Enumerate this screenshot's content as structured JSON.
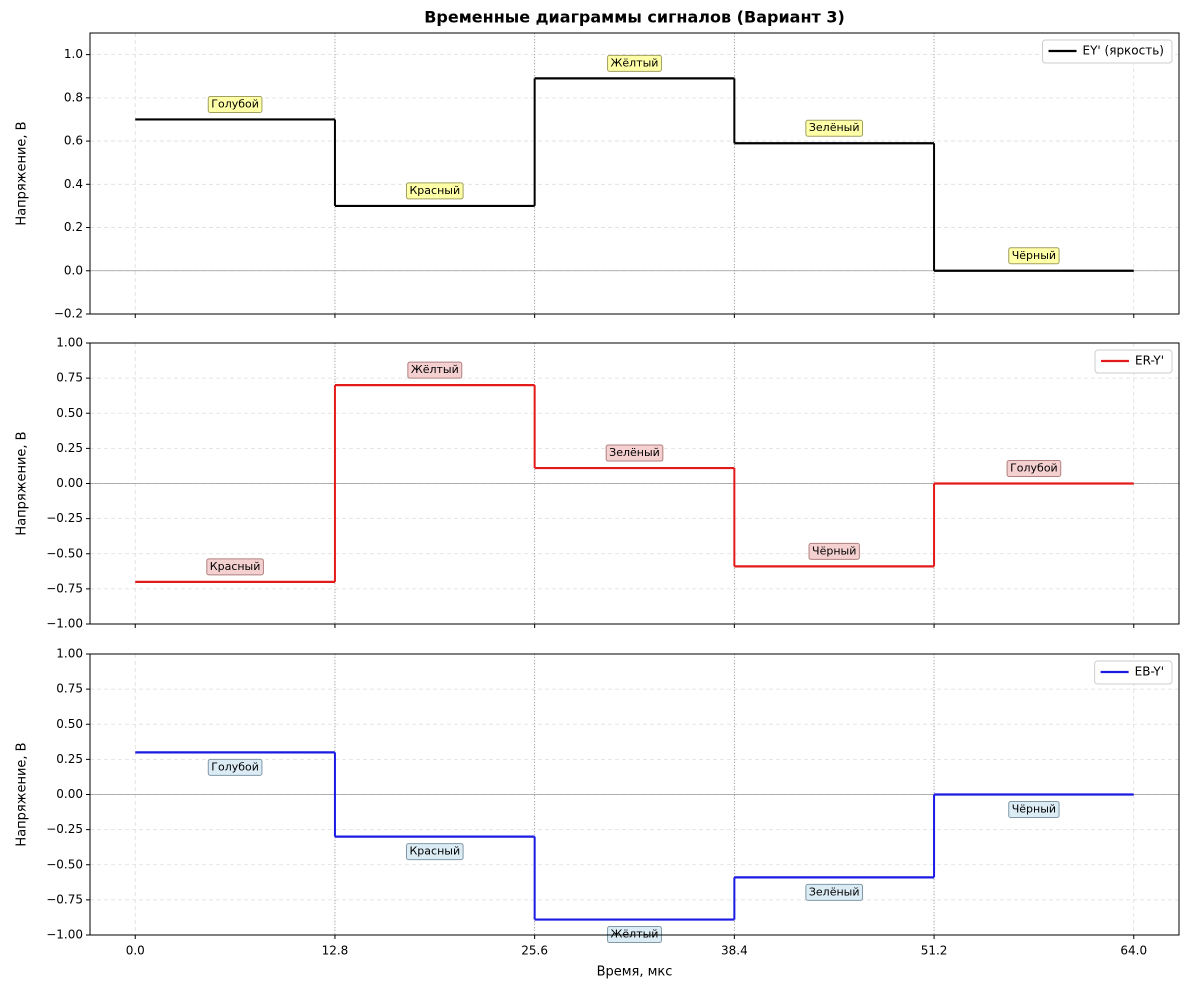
{
  "chart_data": [
    {
      "type": "step",
      "title": "Временные диаграммы сигналов (Вариант 3)",
      "ylabel": "Напряжение, В",
      "bins": [
        0,
        12.8,
        25.6,
        38.4,
        51.2,
        64
      ],
      "categories": [
        "Голубой",
        "Красный",
        "Жёлтый",
        "Зелёный",
        "Чёрный"
      ],
      "series": [
        {
          "name": "EY' (яркость)",
          "color": "#000000",
          "values": [
            0.7,
            0.3,
            0.89,
            0.59,
            0
          ]
        }
      ],
      "ylim": [
        -0.2,
        1.1
      ],
      "yticks": [
        {
          "value": -0.2,
          "label": "−0.2"
        },
        {
          "value": 0,
          "label": "0.0"
        },
        0.2,
        0.4,
        0.6,
        0.8,
        {
          "value": 1,
          "label": "1.0"
        }
      ],
      "grid": true,
      "legend": "upper right"
    },
    {
      "type": "step",
      "ylabel": "Напряжение, В",
      "bins": [
        0,
        12.8,
        25.6,
        38.4,
        51.2,
        64
      ],
      "categories": [
        "Красный",
        "Жёлтый",
        "Зелёный",
        "Чёрный",
        "Голубой"
      ],
      "series": [
        {
          "name": "ER-Y'",
          "color": "#e31a1a",
          "values": [
            -0.7,
            0.7,
            0.11,
            -0.59,
            0
          ]
        }
      ],
      "ylim": [
        -1,
        1
      ],
      "yticks": [
        {
          "value": -1,
          "label": "−1.00"
        },
        {
          "value": -0.75,
          "label": "−0.75"
        },
        {
          "value": -0.5,
          "label": "−0.50"
        },
        {
          "value": -0.25,
          "label": "−0.25"
        },
        {
          "value": 0,
          "label": "0.00"
        },
        0.25,
        {
          "value": 0.5,
          "label": "0.50"
        },
        0.75,
        {
          "value": 1,
          "label": "1.00"
        }
      ],
      "grid": true,
      "legend": "upper right"
    },
    {
      "type": "step",
      "ylabel": "Напряжение, В",
      "xlabel": "Время, мкс",
      "bins": [
        0,
        12.8,
        25.6,
        38.4,
        51.2,
        64
      ],
      "categories": [
        "Голубой",
        "Красный",
        "Жёлтый",
        "Зелёный",
        "Чёрный"
      ],
      "series": [
        {
          "name": "EB-Y'",
          "color": "#1a1ae3",
          "values": [
            0.3,
            -0.3,
            -0.89,
            -0.59,
            0
          ]
        }
      ],
      "xlim": [
        -2.9,
        66.9
      ],
      "xticks": [
        {
          "value": 0,
          "label": "0.0"
        },
        12.8,
        25.6,
        38.4,
        51.2,
        {
          "value": 64,
          "label": "64.0"
        }
      ],
      "ylim": [
        -1,
        1
      ],
      "yticks": [
        {
          "value": -1,
          "label": "−1.00"
        },
        {
          "value": -0.75,
          "label": "−0.75"
        },
        {
          "value": -0.5,
          "label": "−0.50"
        },
        {
          "value": -0.25,
          "label": "−0.25"
        },
        {
          "value": 0,
          "label": "0.00"
        },
        0.25,
        {
          "value": 0.5,
          "label": "0.50"
        },
        0.75,
        {
          "value": 1,
          "label": "1.00"
        }
      ],
      "grid": true,
      "legend": "upper right"
    }
  ]
}
